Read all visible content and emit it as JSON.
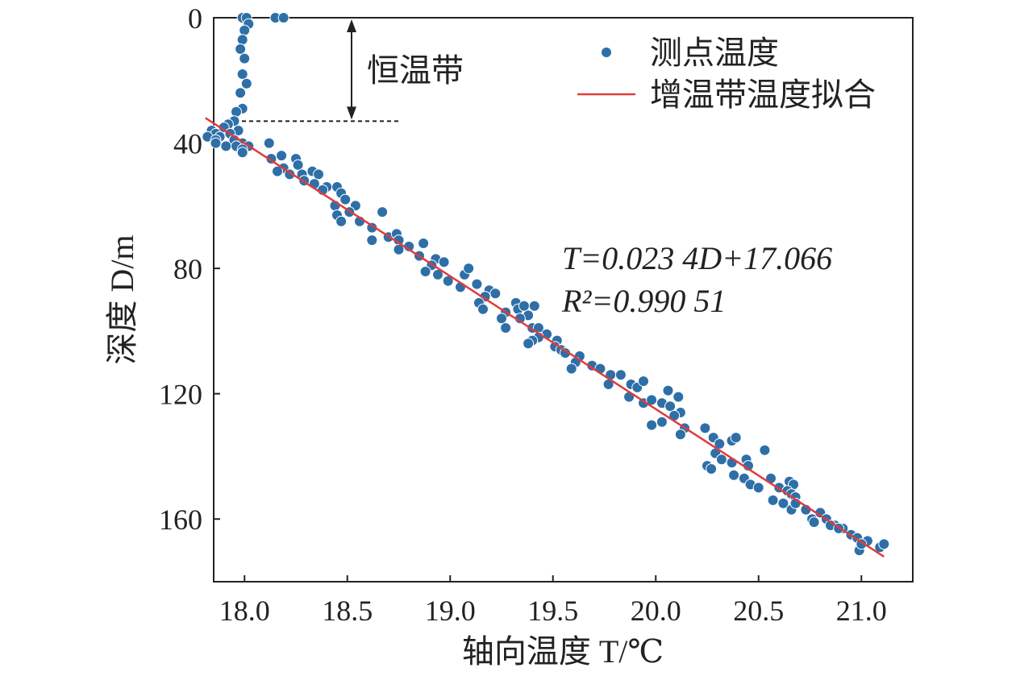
{
  "chart_data": {
    "type": "scatter",
    "xlabel": "轴向温度 T/℃",
    "ylabel": "深度 D/m",
    "xlim": [
      17.85,
      21.25
    ],
    "ylim": [
      0,
      180
    ],
    "y_inverted": true,
    "x_ticks": [
      "18.0",
      "18.5",
      "19.0",
      "19.5",
      "20.0",
      "20.5",
      "21.0"
    ],
    "x_tick_values": [
      18.0,
      18.5,
      19.0,
      19.5,
      20.0,
      20.5,
      21.0
    ],
    "y_ticks": [
      "0",
      "40",
      "80",
      "120",
      "160"
    ],
    "y_tick_values": [
      0,
      40,
      80,
      120,
      160
    ],
    "grid": false,
    "legend_position": "top-right",
    "legend": [
      {
        "label": "测点温度",
        "marker": "dot",
        "color": "#2e6fa7"
      },
      {
        "label": "增温带温度拟合",
        "marker": "line",
        "color": "#e03c3c"
      }
    ],
    "annotation": {
      "label": "恒温带",
      "depth_from": 0,
      "depth_to": 33,
      "boundary_depth": 33
    },
    "equation": {
      "line1": "T=0.023 4D+17.066",
      "line2": "R²=0.990 51"
    },
    "fit_line": {
      "x": [
        17.81,
        21.11
      ],
      "y": [
        32,
        172
      ]
    },
    "series": [
      {
        "name": "测点温度",
        "color": "#2e6fa7",
        "points": [
          [
            17.99,
            0
          ],
          [
            18.01,
            0
          ],
          [
            18.15,
            0
          ],
          [
            18.19,
            0
          ],
          [
            18.02,
            2
          ],
          [
            18.0,
            4
          ],
          [
            17.99,
            7
          ],
          [
            17.98,
            10
          ],
          [
            18.0,
            13
          ],
          [
            17.99,
            18
          ],
          [
            18.01,
            21
          ],
          [
            17.98,
            24
          ],
          [
            17.99,
            29
          ],
          [
            17.96,
            30
          ],
          [
            17.95,
            33
          ],
          [
            17.92,
            34
          ],
          [
            17.9,
            35
          ],
          [
            17.97,
            36
          ],
          [
            17.84,
            36
          ],
          [
            17.86,
            37
          ],
          [
            17.93,
            37
          ],
          [
            17.88,
            38
          ],
          [
            17.82,
            38
          ],
          [
            17.86,
            39
          ],
          [
            17.95,
            39
          ],
          [
            17.99,
            40
          ],
          [
            17.86,
            40
          ],
          [
            17.91,
            41
          ],
          [
            18.02,
            41
          ],
          [
            17.96,
            41
          ],
          [
            17.99,
            42
          ],
          [
            17.99,
            43
          ],
          [
            18.12,
            40
          ],
          [
            18.13,
            45
          ],
          [
            18.18,
            44
          ],
          [
            18.25,
            45
          ],
          [
            18.26,
            47
          ],
          [
            18.19,
            48
          ],
          [
            18.16,
            49
          ],
          [
            18.22,
            50
          ],
          [
            18.28,
            50
          ],
          [
            18.29,
            52
          ],
          [
            18.33,
            49
          ],
          [
            18.36,
            50
          ],
          [
            18.34,
            53
          ],
          [
            18.4,
            54
          ],
          [
            18.38,
            55
          ],
          [
            18.45,
            54
          ],
          [
            18.47,
            56
          ],
          [
            18.49,
            58
          ],
          [
            18.44,
            60
          ],
          [
            18.54,
            60
          ],
          [
            18.51,
            62
          ],
          [
            18.45,
            63
          ],
          [
            18.47,
            65
          ],
          [
            18.56,
            65
          ],
          [
            18.62,
            67
          ],
          [
            18.67,
            62
          ],
          [
            18.7,
            70
          ],
          [
            18.74,
            69
          ],
          [
            18.75,
            71
          ],
          [
            18.8,
            73
          ],
          [
            18.75,
            74
          ],
          [
            18.62,
            71
          ],
          [
            18.87,
            72
          ],
          [
            18.85,
            76
          ],
          [
            18.93,
            77
          ],
          [
            18.91,
            79
          ],
          [
            18.97,
            78
          ],
          [
            18.88,
            81
          ],
          [
            18.94,
            82
          ],
          [
            18.99,
            84
          ],
          [
            19.07,
            82
          ],
          [
            19.05,
            86
          ],
          [
            19.09,
            80
          ],
          [
            19.13,
            85
          ],
          [
            19.19,
            87
          ],
          [
            19.22,
            88
          ],
          [
            19.17,
            89
          ],
          [
            19.14,
            91
          ],
          [
            19.16,
            93
          ],
          [
            19.27,
            94
          ],
          [
            19.32,
            91
          ],
          [
            19.33,
            93
          ],
          [
            19.36,
            92
          ],
          [
            19.38,
            95
          ],
          [
            19.41,
            92
          ],
          [
            19.34,
            96
          ],
          [
            19.4,
            99
          ],
          [
            19.25,
            96
          ],
          [
            19.27,
            99
          ],
          [
            19.43,
            99
          ],
          [
            19.47,
            101
          ],
          [
            19.43,
            102
          ],
          [
            19.4,
            103
          ],
          [
            19.38,
            104
          ],
          [
            19.52,
            103
          ],
          [
            19.51,
            105
          ],
          [
            19.54,
            106
          ],
          [
            19.56,
            107
          ],
          [
            19.63,
            108
          ],
          [
            19.61,
            110
          ],
          [
            19.59,
            112
          ],
          [
            19.69,
            111
          ],
          [
            19.73,
            112
          ],
          [
            19.78,
            114
          ],
          [
            19.83,
            114
          ],
          [
            19.77,
            117
          ],
          [
            19.88,
            117
          ],
          [
            19.91,
            118
          ],
          [
            19.94,
            116
          ],
          [
            19.87,
            121
          ],
          [
            19.94,
            123
          ],
          [
            19.98,
            122
          ],
          [
            20.03,
            123
          ],
          [
            20.07,
            124
          ],
          [
            20.06,
            119
          ],
          [
            20.11,
            121
          ],
          [
            20.12,
            126
          ],
          [
            20.09,
            127
          ],
          [
            20.03,
            129
          ],
          [
            19.98,
            130
          ],
          [
            20.14,
            131
          ],
          [
            20.12,
            133
          ],
          [
            20.24,
            131
          ],
          [
            20.28,
            134
          ],
          [
            20.31,
            136
          ],
          [
            20.37,
            135
          ],
          [
            20.39,
            134
          ],
          [
            20.29,
            139
          ],
          [
            20.32,
            141
          ],
          [
            20.25,
            143
          ],
          [
            20.27,
            144
          ],
          [
            20.37,
            142
          ],
          [
            20.44,
            141
          ],
          [
            20.45,
            143
          ],
          [
            20.43,
            147
          ],
          [
            20.38,
            146
          ],
          [
            20.46,
            149
          ],
          [
            20.5,
            150
          ],
          [
            20.53,
            138
          ],
          [
            20.56,
            147
          ],
          [
            20.6,
            150
          ],
          [
            20.65,
            148
          ],
          [
            20.67,
            149
          ],
          [
            20.64,
            151
          ],
          [
            20.66,
            152
          ],
          [
            20.68,
            153
          ],
          [
            20.62,
            155
          ],
          [
            20.66,
            157
          ],
          [
            20.73,
            157
          ],
          [
            20.76,
            160
          ],
          [
            20.8,
            158
          ],
          [
            20.83,
            160
          ],
          [
            20.87,
            162
          ],
          [
            20.91,
            163
          ],
          [
            20.95,
            165
          ],
          [
            20.98,
            166
          ],
          [
            21.03,
            167
          ],
          [
            21.09,
            169
          ],
          [
            21.11,
            168
          ],
          [
            20.99,
            170
          ],
          [
            20.57,
            154
          ],
          [
            20.68,
            155
          ],
          [
            20.77,
            161
          ],
          [
            20.85,
            162
          ],
          [
            20.89,
            163
          ],
          [
            21.0,
            168
          ]
        ]
      }
    ]
  }
}
